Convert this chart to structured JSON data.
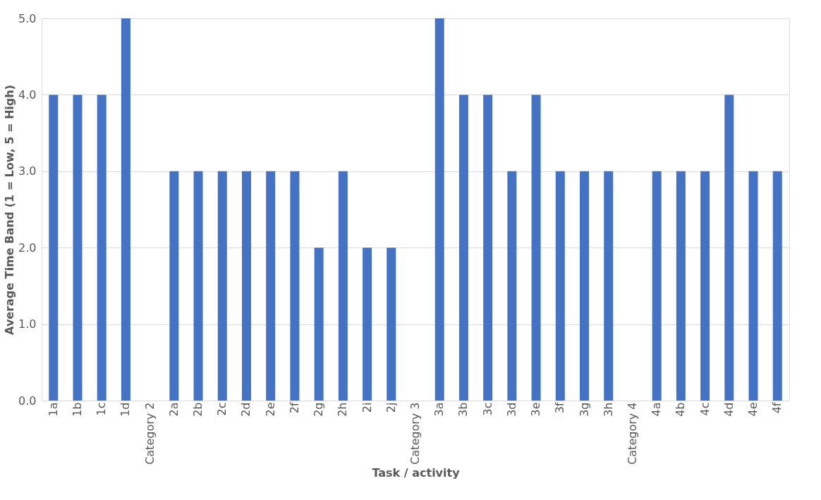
{
  "chart_data": {
    "type": "bar",
    "xlabel": "Task / activity",
    "ylabel": "Average Time Band (1 = Low, 5 = High)",
    "categories": [
      "1a",
      "1b",
      "1c",
      "1d",
      "Category 2",
      "2a",
      "2b",
      "2c",
      "2d",
      "2e",
      "2f",
      "2g",
      "2h",
      "2i",
      "2j",
      "Category 3",
      "3a",
      "3b",
      "3c",
      "3d",
      "3e",
      "3f",
      "3g",
      "3h",
      "Category 4",
      "4a",
      "4b",
      "4c",
      "4d",
      "4e",
      "4f"
    ],
    "values": [
      4,
      4,
      4,
      5,
      null,
      3,
      3,
      3,
      3,
      3,
      3,
      2,
      3,
      2,
      2,
      null,
      5,
      4,
      4,
      3,
      4,
      3,
      3,
      3,
      null,
      3,
      3,
      3,
      4,
      3,
      3
    ],
    "color": "#4472c4",
    "ylim": [
      0,
      5
    ],
    "yticks": [
      {
        "value": 0,
        "label": "0.0"
      },
      {
        "value": 1,
        "label": "1.0"
      },
      {
        "value": 2,
        "label": "2.0"
      },
      {
        "value": 3,
        "label": "3.0"
      },
      {
        "value": 4,
        "label": "4.0"
      },
      {
        "value": 5,
        "label": "5.0"
      }
    ],
    "grid": "y"
  }
}
